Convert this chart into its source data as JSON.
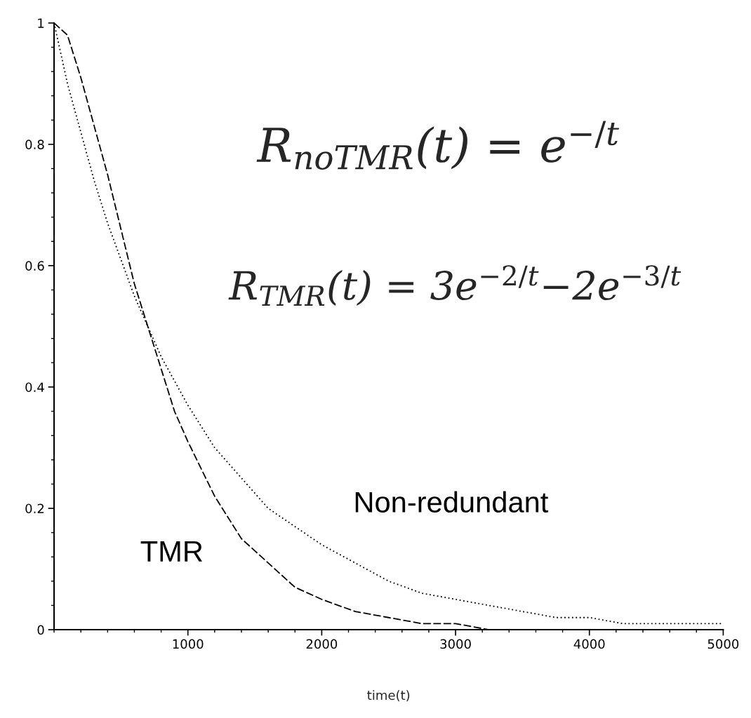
{
  "chart_data": {
    "type": "line",
    "xlabel": "time(t)",
    "annotations": [
      "R$_{noTMR}$(t) = e$^{−/t}$",
      "R$_{TMR}$(t) = 3e$^{−2/t}$−2e$^{−3/t}$"
    ],
    "series": [
      {
        "name": "TMR",
        "color": "#000000",
        "line_style": "dashed",
        "x": [
          0,
          100,
          200,
          300,
          400,
          500,
          600,
          700,
          800,
          900,
          1000,
          1200,
          1400,
          1600,
          1800,
          2000,
          2250,
          2500,
          2750,
          3000,
          3250,
          3500,
          3600
        ],
        "values": [
          1,
          0.98,
          0.91,
          0.83,
          0.75,
          0.66,
          0.57,
          0.5,
          0.43,
          0.36,
          0.31,
          0.22,
          0.15,
          0.11,
          0.07,
          0.05,
          0.03,
          0.02,
          0.01,
          0.01,
          0.0,
          0.0,
          0.0
        ]
      },
      {
        "name": "Non-redundant",
        "color": "#000000",
        "line_style": "dotted",
        "x": [
          0,
          100,
          200,
          300,
          400,
          500,
          600,
          700,
          800,
          900,
          1000,
          1200,
          1400,
          1600,
          1800,
          2000,
          2250,
          2500,
          2750,
          3000,
          3250,
          3500,
          3750,
          4000,
          4250,
          4500,
          4750,
          5000
        ],
        "values": [
          1,
          0.9,
          0.82,
          0.74,
          0.67,
          0.61,
          0.55,
          0.5,
          0.45,
          0.41,
          0.37,
          0.3,
          0.25,
          0.2,
          0.17,
          0.14,
          0.11,
          0.08,
          0.06,
          0.05,
          0.04,
          0.03,
          0.02,
          0.02,
          0.01,
          0.01,
          0.01,
          0.01
        ]
      }
    ],
    "xlim": [
      0,
      5000
    ],
    "xticks": [
      1000,
      2000,
      3000,
      4000,
      5000
    ],
    "ylim": [
      0,
      1
    ],
    "yticks": [
      0,
      0.2,
      0.4,
      0.6,
      0.8,
      1
    ]
  }
}
